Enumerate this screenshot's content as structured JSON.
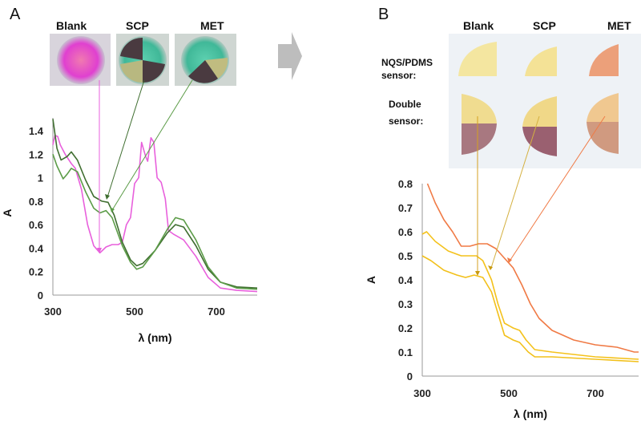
{
  "panels": {
    "a": "A",
    "b": "B"
  },
  "photos_a": {
    "labels": [
      "Blank",
      "SCP",
      "MET"
    ]
  },
  "photos_b": {
    "labels": [
      "Blank",
      "SCP",
      "MET"
    ],
    "row1": [
      "NQS/PDMS",
      "sensor:"
    ],
    "row2": [
      "Double",
      "sensor:"
    ]
  },
  "colors": {
    "blank_a": "#e860dc",
    "scp_a": "#3f6e30",
    "met_a": "#5c9c48",
    "met_b": "#f07a45",
    "scp_b": "#f4c21c",
    "blank_b": "#f2c01a",
    "arrow": "#bdbdbd"
  },
  "chart_data": [
    {
      "type": "line",
      "xlabel": "λ (nm)",
      "ylabel": "A",
      "xlim": [
        300,
        800
      ],
      "ylim": [
        0,
        1.5
      ],
      "xticks": [
        300,
        500,
        700
      ],
      "yticks": [
        0,
        0.2,
        0.4,
        0.6,
        0.8,
        1,
        1.2,
        1.4
      ],
      "ytick_labels": [
        "0",
        "0.2",
        "0.4",
        "0.6",
        "0.8",
        "1",
        "1.2",
        "1.4"
      ],
      "grid": false,
      "series": [
        {
          "name": "Blank",
          "color": "#e860dc",
          "x": [
            300,
            305,
            312,
            318,
            330,
            345,
            355,
            370,
            385,
            400,
            415,
            430,
            445,
            460,
            470,
            480,
            490,
            500,
            510,
            517,
            527,
            532,
            540,
            547,
            555,
            565,
            575,
            583,
            595,
            620,
            650,
            680,
            710,
            750,
            800
          ],
          "y": [
            1.28,
            1.36,
            1.35,
            1.28,
            1.2,
            1.12,
            1.08,
            0.9,
            0.6,
            0.42,
            0.36,
            0.41,
            0.43,
            0.43,
            0.45,
            0.6,
            0.66,
            0.95,
            1.0,
            1.3,
            1.18,
            1.14,
            1.34,
            1.3,
            1.0,
            0.96,
            0.82,
            0.55,
            0.52,
            0.47,
            0.33,
            0.15,
            0.06,
            0.04,
            0.03
          ]
        },
        {
          "name": "SCP",
          "color": "#3f6e30",
          "x": [
            300,
            310,
            320,
            335,
            345,
            360,
            380,
            400,
            420,
            435,
            450,
            470,
            490,
            505,
            520,
            550,
            580,
            600,
            620,
            650,
            680,
            710,
            750,
            800
          ],
          "y": [
            1.5,
            1.25,
            1.15,
            1.18,
            1.22,
            1.15,
            0.98,
            0.84,
            0.8,
            0.79,
            0.68,
            0.45,
            0.3,
            0.25,
            0.27,
            0.38,
            0.53,
            0.6,
            0.58,
            0.42,
            0.22,
            0.11,
            0.07,
            0.06
          ]
        },
        {
          "name": "MET",
          "color": "#5c9c48",
          "x": [
            300,
            310,
            325,
            335,
            345,
            360,
            380,
            400,
            415,
            430,
            445,
            470,
            490,
            505,
            520,
            550,
            580,
            600,
            620,
            650,
            680,
            710,
            750,
            800
          ],
          "y": [
            1.2,
            1.1,
            0.99,
            1.03,
            1.08,
            1.05,
            0.88,
            0.74,
            0.7,
            0.72,
            0.66,
            0.42,
            0.28,
            0.22,
            0.24,
            0.38,
            0.56,
            0.66,
            0.64,
            0.47,
            0.24,
            0.11,
            0.06,
            0.05
          ]
        }
      ]
    },
    {
      "type": "line",
      "xlabel": "λ (nm)",
      "ylabel": "A",
      "xlim": [
        300,
        800
      ],
      "ylim": [
        0,
        0.8
      ],
      "xticks": [
        300,
        500,
        700
      ],
      "yticks": [
        0,
        0.1,
        0.2,
        0.3,
        0.4,
        0.5,
        0.6,
        0.7,
        0.8
      ],
      "ytick_labels": [
        "0",
        "0.1",
        "0.2",
        "0.3",
        "0.4",
        "0.5",
        "0.6",
        "0.7",
        "0.8"
      ],
      "grid": false,
      "series": [
        {
          "name": "MET",
          "color": "#f07a45",
          "x": [
            312,
            330,
            350,
            370,
            390,
            410,
            430,
            450,
            470,
            490,
            510,
            530,
            550,
            570,
            600,
            650,
            700,
            750,
            790,
            800
          ],
          "y": [
            0.8,
            0.72,
            0.65,
            0.6,
            0.54,
            0.54,
            0.55,
            0.55,
            0.53,
            0.49,
            0.45,
            0.38,
            0.3,
            0.24,
            0.19,
            0.15,
            0.13,
            0.12,
            0.1,
            0.1
          ]
        },
        {
          "name": "SCP",
          "color": "#f4c21c",
          "x": [
            300,
            310,
            330,
            360,
            390,
            410,
            425,
            440,
            460,
            475,
            490,
            510,
            525,
            540,
            560,
            600,
            650,
            700,
            800
          ],
          "y": [
            0.59,
            0.6,
            0.56,
            0.52,
            0.5,
            0.5,
            0.5,
            0.48,
            0.4,
            0.3,
            0.22,
            0.2,
            0.19,
            0.15,
            0.11,
            0.1,
            0.09,
            0.08,
            0.07
          ]
        },
        {
          "name": "Blank",
          "color": "#f2c01a",
          "x": [
            300,
            320,
            350,
            380,
            400,
            420,
            440,
            460,
            475,
            490,
            510,
            525,
            545,
            560,
            600,
            700,
            800
          ],
          "y": [
            0.5,
            0.48,
            0.44,
            0.42,
            0.41,
            0.42,
            0.41,
            0.35,
            0.26,
            0.17,
            0.15,
            0.14,
            0.1,
            0.08,
            0.08,
            0.07,
            0.06
          ]
        }
      ]
    }
  ]
}
